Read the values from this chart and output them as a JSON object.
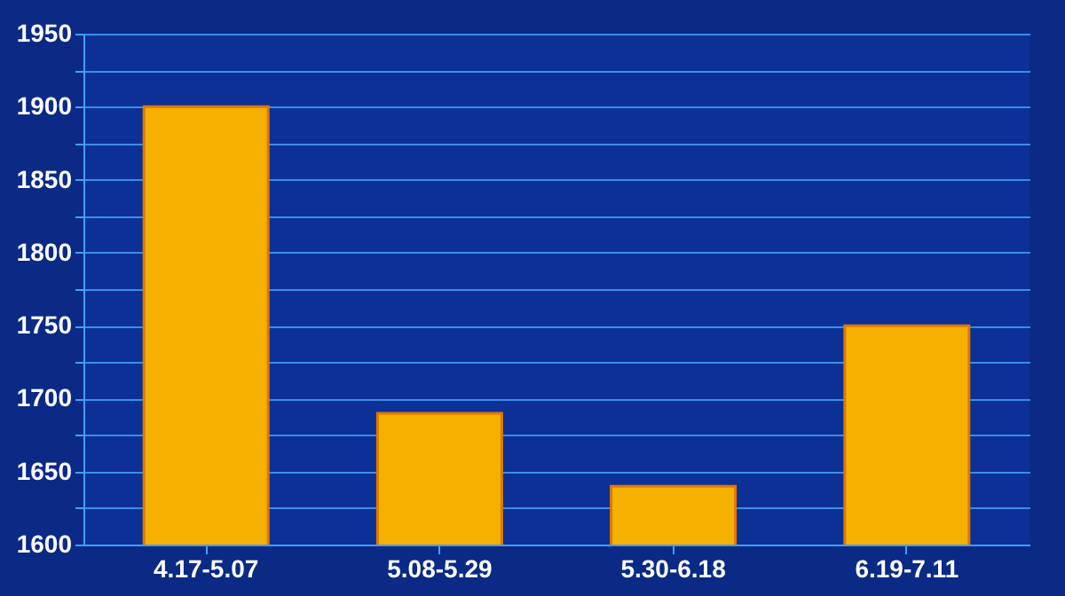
{
  "chart_data": {
    "type": "bar",
    "categories": [
      "4.17-5.07",
      "5.08-5.29",
      "5.30-6.18",
      "6.19-7.11"
    ],
    "values": [
      1900,
      1690,
      1640,
      1750
    ],
    "color": "#f5b000",
    "ylim": [
      1600,
      1950
    ],
    "yticks": [
      1600,
      {
        "value": 1625,
        "label": null
      },
      1650,
      {
        "value": 1675,
        "label": null
      },
      1700,
      {
        "value": 1725,
        "label": null
      },
      1750,
      {
        "value": 1775,
        "label": null
      },
      1800,
      {
        "value": 1825,
        "label": null
      },
      1850,
      {
        "value": 1875,
        "label": null
      },
      1900,
      {
        "value": 1925,
        "label": null
      },
      1950
    ],
    "grid": "y"
  }
}
